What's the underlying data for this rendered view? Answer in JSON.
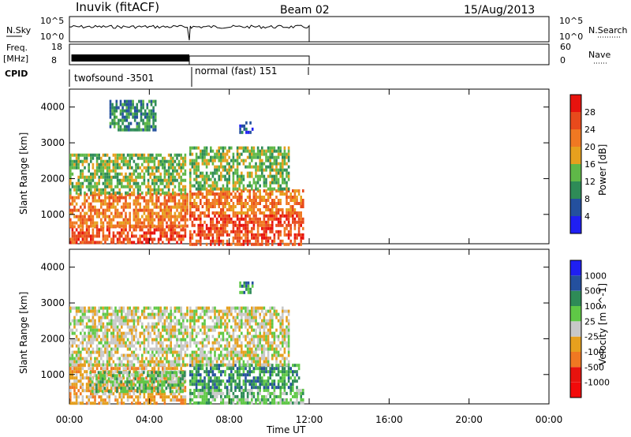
{
  "header": {
    "station": "Inuvik (fitACF)",
    "beam": "Beam 02",
    "date": "15/Aug/2013"
  },
  "top_panels": {
    "nsky_label": "N.Sky",
    "nsky_ticks": [
      "10^5",
      "10^0"
    ],
    "nsearch_label": "N.Search",
    "freq_label": "Freq.",
    "freq_unit": "[MHz]",
    "freq_ticks": [
      "18",
      "8"
    ],
    "nave_label": "Nave",
    "nave_ticks": [
      "60",
      "0"
    ],
    "cpid_label": "CPID",
    "cpid_segments": [
      {
        "name": "twofsound -3501",
        "start_hour": 0,
        "end_hour": 6
      },
      {
        "name": "normal (fast) 151",
        "start_hour": 6,
        "end_hour": 12
      }
    ]
  },
  "x_axis": {
    "label": "Time UT",
    "ticks": [
      "00:00",
      "04:00",
      "08:00",
      "12:00",
      "16:00",
      "20:00",
      "00:00"
    ],
    "range_hours": [
      0,
      24
    ],
    "data_end_hour": 12
  },
  "chart_data": [
    {
      "type": "heatmap",
      "panel": "power",
      "ylabel": "Slant Range [km]",
      "yticks": [
        1000,
        2000,
        3000,
        4000
      ],
      "ylim": [
        180,
        4500
      ],
      "colorbar_label": "Power [dB]",
      "colorbar_ticks": [
        "4",
        "8",
        "12",
        "16",
        "20",
        "24",
        "28"
      ],
      "colors": [
        "#1f1ff2",
        "#24509e",
        "#2e8b57",
        "#5fb848",
        "#e6a01e",
        "#f07822",
        "#e84a1c",
        "#e8130e"
      ],
      "regions": [
        {
          "t0": 0.0,
          "t1": 5.8,
          "r0": 200,
          "r1": 700,
          "level": 6
        },
        {
          "t0": 0.0,
          "t1": 5.9,
          "r0": 700,
          "r1": 1600,
          "level": 5
        },
        {
          "t0": 0.0,
          "t1": 5.8,
          "r0": 1600,
          "r1": 2700,
          "level": 3
        },
        {
          "t0": 2.0,
          "t1": 4.3,
          "r0": 3400,
          "r1": 4200,
          "level": 2
        },
        {
          "t0": 6.0,
          "t1": 11.7,
          "r0": 200,
          "r1": 1000,
          "level": 6
        },
        {
          "t0": 6.0,
          "t1": 11.7,
          "r0": 1000,
          "r1": 1700,
          "level": 5
        },
        {
          "t0": 6.0,
          "t1": 11.0,
          "r0": 1700,
          "r1": 2900,
          "level": 3
        },
        {
          "t0": 8.5,
          "t1": 9.2,
          "r0": 3300,
          "r1": 3600,
          "level": 1
        }
      ]
    },
    {
      "type": "heatmap",
      "panel": "velocity",
      "ylabel": "Slant Range [km]",
      "yticks": [
        1000,
        2000,
        3000,
        4000
      ],
      "ylim": [
        180,
        4500
      ],
      "colorbar_label": "Velocity [m s^-1]",
      "colorbar_ticks": [
        "1000",
        "500",
        "100",
        "25",
        "-25",
        "-100",
        "-500",
        "-1000"
      ],
      "colors": [
        "#1f1ff2",
        "#24509e",
        "#2e8b57",
        "#5fc846",
        "#c8c8c8",
        "#e6a01e",
        "#f07822",
        "#e8130e",
        "#f20a0a"
      ],
      "regions": [
        {
          "t0": 0.0,
          "t1": 5.8,
          "r0": 200,
          "r1": 1300,
          "level": 5
        },
        {
          "t0": 0.0,
          "t1": 5.9,
          "r0": 1300,
          "r1": 2900,
          "level": 4
        },
        {
          "t0": 1.0,
          "t1": 5.8,
          "r0": 500,
          "r1": 1100,
          "level": 3
        },
        {
          "t0": 6.0,
          "t1": 11.7,
          "r0": 200,
          "r1": 600,
          "level": 3
        },
        {
          "t0": 6.0,
          "t1": 11.5,
          "r0": 600,
          "r1": 1300,
          "level": 2
        },
        {
          "t0": 6.0,
          "t1": 11.0,
          "r0": 1300,
          "r1": 2900,
          "level": 4
        },
        {
          "t0": 8.5,
          "t1": 9.2,
          "r0": 3300,
          "r1": 3600,
          "level": 2
        }
      ]
    }
  ]
}
